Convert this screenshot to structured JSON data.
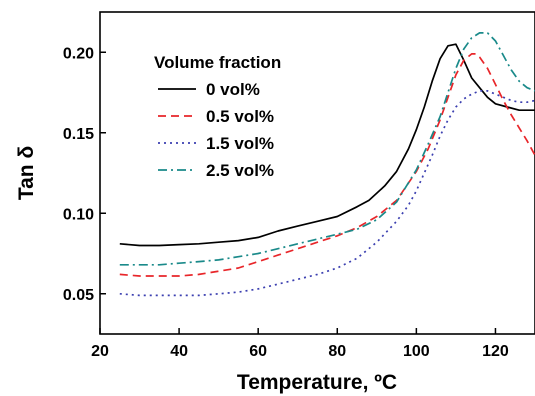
{
  "chart_data": {
    "type": "line",
    "xlabel": "Temperature, ºC",
    "ylabel": "Tan δ",
    "xlim": [
      20,
      130
    ],
    "ylim": [
      0.025,
      0.225
    ],
    "x_ticks": [
      20,
      40,
      60,
      80,
      100,
      120
    ],
    "y_ticks": [
      0.05,
      0.1,
      0.15,
      0.2
    ],
    "x_tick_labels": [
      "20",
      "40",
      "60",
      "80",
      "100",
      "120"
    ],
    "y_tick_labels": [
      "0.05",
      "0.10",
      "0.15",
      "0.20"
    ],
    "grid": false,
    "legend": {
      "title": "Volume fraction",
      "position": "top-left"
    },
    "series": [
      {
        "name": "0 vol%",
        "color": "#000000",
        "dash": "solid",
        "x": [
          25,
          30,
          35,
          40,
          45,
          50,
          55,
          60,
          65,
          70,
          75,
          80,
          85,
          88,
          92,
          95,
          98,
          100,
          102,
          104,
          106,
          108,
          110,
          112,
          114,
          116,
          118,
          120,
          123,
          126,
          130
        ],
        "y": [
          0.081,
          0.08,
          0.08,
          0.0805,
          0.081,
          0.082,
          0.083,
          0.085,
          0.089,
          0.092,
          0.095,
          0.098,
          0.104,
          0.108,
          0.117,
          0.126,
          0.14,
          0.152,
          0.166,
          0.182,
          0.196,
          0.204,
          0.205,
          0.195,
          0.184,
          0.178,
          0.172,
          0.168,
          0.166,
          0.164,
          0.164
        ]
      },
      {
        "name": "0.5 vol%",
        "color": "#e8262a",
        "dash": "dashed",
        "x": [
          25,
          30,
          35,
          40,
          45,
          50,
          55,
          60,
          65,
          70,
          75,
          80,
          85,
          90,
          95,
          100,
          103,
          106,
          108,
          110,
          112,
          114,
          115,
          116,
          118,
          120,
          122,
          124,
          126,
          128,
          130
        ],
        "y": [
          0.062,
          0.061,
          0.061,
          0.061,
          0.062,
          0.064,
          0.066,
          0.07,
          0.074,
          0.078,
          0.082,
          0.086,
          0.091,
          0.098,
          0.108,
          0.126,
          0.14,
          0.158,
          0.172,
          0.186,
          0.195,
          0.199,
          0.199,
          0.197,
          0.19,
          0.18,
          0.17,
          0.161,
          0.153,
          0.145,
          0.136
        ]
      },
      {
        "name": "1.5 vol%",
        "color": "#3b3fb0",
        "dash": "dotted",
        "x": [
          25,
          30,
          35,
          40,
          45,
          50,
          55,
          60,
          65,
          70,
          75,
          80,
          85,
          90,
          95,
          98,
          100,
          102,
          104,
          106,
          108,
          110,
          112,
          114,
          116,
          118,
          120,
          122,
          124,
          126,
          128,
          130
        ],
        "y": [
          0.05,
          0.049,
          0.049,
          0.049,
          0.049,
          0.05,
          0.051,
          0.053,
          0.056,
          0.059,
          0.062,
          0.066,
          0.072,
          0.082,
          0.095,
          0.105,
          0.114,
          0.125,
          0.136,
          0.148,
          0.158,
          0.166,
          0.171,
          0.174,
          0.176,
          0.176,
          0.174,
          0.172,
          0.17,
          0.169,
          0.169,
          0.17
        ]
      },
      {
        "name": "2.5 vol%",
        "color": "#1a8a8a",
        "dash": "dashdot",
        "x": [
          25,
          30,
          35,
          40,
          45,
          50,
          55,
          60,
          65,
          70,
          75,
          80,
          85,
          90,
          95,
          100,
          103,
          106,
          108,
          110,
          112,
          114,
          116,
          118,
          120,
          122,
          124,
          126,
          128,
          130
        ],
        "y": [
          0.068,
          0.068,
          0.068,
          0.069,
          0.07,
          0.071,
          0.073,
          0.075,
          0.078,
          0.081,
          0.084,
          0.087,
          0.09,
          0.096,
          0.107,
          0.127,
          0.143,
          0.16,
          0.175,
          0.19,
          0.202,
          0.209,
          0.212,
          0.212,
          0.207,
          0.198,
          0.189,
          0.182,
          0.178,
          0.176
        ]
      }
    ]
  }
}
